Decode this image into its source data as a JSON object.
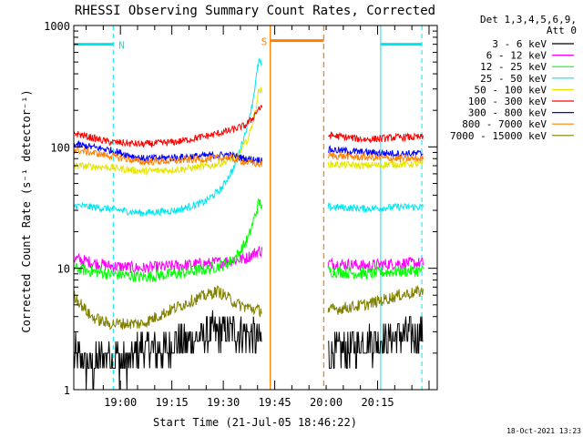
{
  "chart_data": {
    "type": "line",
    "title": "RHESSI Observing Summary Count Rates, Corrected",
    "xlabel": "Start Time (21-Jul-05 18:46:22)",
    "ylabel": "Corrected Count Rate (s⁻¹ detector⁻¹)",
    "yscale": "log",
    "ylim": [
      1,
      1000
    ],
    "xlim_minutes": [
      0,
      106
    ],
    "y_ticks": [
      "1",
      "10",
      "100",
      "1000"
    ],
    "x_ticks": [
      {
        "label": "19:00",
        "t": 13.6
      },
      {
        "label": "19:15",
        "t": 28.6
      },
      {
        "label": "19:30",
        "t": 43.6
      },
      {
        "label": "19:45",
        "t": 58.6
      },
      {
        "label": "20:00",
        "t": 73.6
      },
      {
        "label": "20:15",
        "t": 88.6
      }
    ],
    "legend": {
      "position": "top-right",
      "header": [
        "Det 1,3,4,5,6,9,",
        "Att 0"
      ]
    },
    "annotations": [
      {
        "label": "N",
        "t_start": 0,
        "t_end": 11.5,
        "y": 700,
        "color": "#00e5ee"
      },
      {
        "label": "",
        "t_start": 89.5,
        "t_end": 101.5,
        "y": 700,
        "color": "#00e5ee"
      },
      {
        "label": "S",
        "t_start": 57.3,
        "t_end": 72.9,
        "y": 750,
        "color": "#ff8000"
      }
    ],
    "night_bounds": [
      0,
      11.5,
      89.5,
      101.5
    ],
    "saa_bounds": [
      57.3,
      72.9
    ],
    "data_gap": [
      55.0,
      74.0
    ],
    "series": [
      {
        "name": "3 - 6 keV",
        "color": "#000000",
        "points": [
          [
            0,
            2
          ],
          [
            5,
            1.5
          ],
          [
            10,
            2
          ],
          [
            15,
            1.6
          ],
          [
            20,
            2.2
          ],
          [
            25,
            2
          ],
          [
            30,
            2.5
          ],
          [
            35,
            2.5
          ],
          [
            40,
            3
          ],
          [
            45,
            3
          ],
          [
            50,
            3
          ],
          [
            54,
            2.5
          ],
          [
            74,
            2
          ],
          [
            80,
            2.2
          ],
          [
            85,
            2.5
          ],
          [
            90,
            2.5
          ],
          [
            95,
            2.8
          ],
          [
            102,
            2.8
          ]
        ]
      },
      {
        "name": "6 - 12 keV",
        "color": "#ff00ff",
        "points": [
          [
            0,
            12
          ],
          [
            10,
            10.5
          ],
          [
            20,
            10
          ],
          [
            30,
            10.5
          ],
          [
            40,
            11
          ],
          [
            45,
            11.5
          ],
          [
            50,
            12
          ],
          [
            54,
            14
          ],
          [
            74,
            11
          ],
          [
            85,
            10.5
          ],
          [
            95,
            11
          ],
          [
            102,
            11
          ]
        ]
      },
      {
        "name": "12 - 25 keV",
        "color": "#00ff00",
        "points": [
          [
            0,
            10
          ],
          [
            10,
            9
          ],
          [
            20,
            8.5
          ],
          [
            30,
            9
          ],
          [
            40,
            10
          ],
          [
            45,
            11
          ],
          [
            48,
            13
          ],
          [
            51,
            18
          ],
          [
            54,
            35
          ],
          [
            74,
            9.5
          ],
          [
            85,
            9
          ],
          [
            95,
            9.5
          ],
          [
            102,
            9.5
          ]
        ]
      },
      {
        "name": "25 - 50 keV",
        "color": "#00e5ee",
        "points": [
          [
            0,
            33
          ],
          [
            10,
            31
          ],
          [
            20,
            28.5
          ],
          [
            30,
            30
          ],
          [
            38,
            35
          ],
          [
            43,
            45
          ],
          [
            47,
            70
          ],
          [
            50,
            130
          ],
          [
            52,
            220
          ],
          [
            54,
            520
          ],
          [
            74,
            32
          ],
          [
            85,
            31
          ],
          [
            95,
            32
          ],
          [
            102,
            32
          ]
        ]
      },
      {
        "name": "50 - 100 keV",
        "color": "#e5e500",
        "points": [
          [
            0,
            70
          ],
          [
            10,
            68
          ],
          [
            20,
            63
          ],
          [
            30,
            65
          ],
          [
            40,
            70
          ],
          [
            44,
            75
          ],
          [
            48,
            85
          ],
          [
            51,
            120
          ],
          [
            53,
            200
          ],
          [
            54,
            300
          ],
          [
            74,
            72
          ],
          [
            85,
            70
          ],
          [
            95,
            72
          ],
          [
            102,
            72
          ]
        ]
      },
      {
        "name": "100 - 300 keV",
        "color": "#ff0000",
        "points": [
          [
            0,
            130
          ],
          [
            10,
            110
          ],
          [
            20,
            105
          ],
          [
            30,
            110
          ],
          [
            40,
            125
          ],
          [
            45,
            135
          ],
          [
            50,
            150
          ],
          [
            52,
            170
          ],
          [
            54,
            210
          ],
          [
            74,
            125
          ],
          [
            85,
            115
          ],
          [
            95,
            120
          ],
          [
            102,
            120
          ]
        ]
      },
      {
        "name": "300 - 800 keV",
        "color": "#0000ff",
        "points": [
          [
            0,
            105
          ],
          [
            10,
            95
          ],
          [
            20,
            80
          ],
          [
            30,
            82
          ],
          [
            40,
            85
          ],
          [
            45,
            86
          ],
          [
            50,
            80
          ],
          [
            54,
            78
          ],
          [
            74,
            95
          ],
          [
            85,
            90
          ],
          [
            95,
            88
          ],
          [
            102,
            88
          ]
        ]
      },
      {
        "name": "800 - 7000 keV",
        "color": "#ff8000",
        "points": [
          [
            0,
            95
          ],
          [
            10,
            85
          ],
          [
            20,
            75
          ],
          [
            30,
            77
          ],
          [
            40,
            80
          ],
          [
            45,
            82
          ],
          [
            50,
            75
          ],
          [
            54,
            72
          ],
          [
            74,
            85
          ],
          [
            85,
            82
          ],
          [
            95,
            80
          ],
          [
            102,
            80
          ]
        ]
      },
      {
        "name": "7000 - 15000 keV",
        "color": "#808000",
        "points": [
          [
            0,
            6
          ],
          [
            5,
            4
          ],
          [
            10,
            3.5
          ],
          [
            20,
            3.5
          ],
          [
            28,
            4.5
          ],
          [
            35,
            5.5
          ],
          [
            42,
            6.5
          ],
          [
            48,
            5
          ],
          [
            54,
            4.5
          ],
          [
            74,
            4.5
          ],
          [
            85,
            5
          ],
          [
            95,
            6
          ],
          [
            102,
            6.5
          ]
        ]
      }
    ]
  },
  "footer": {
    "timestamp": "18-Oct-2021 13:23"
  }
}
